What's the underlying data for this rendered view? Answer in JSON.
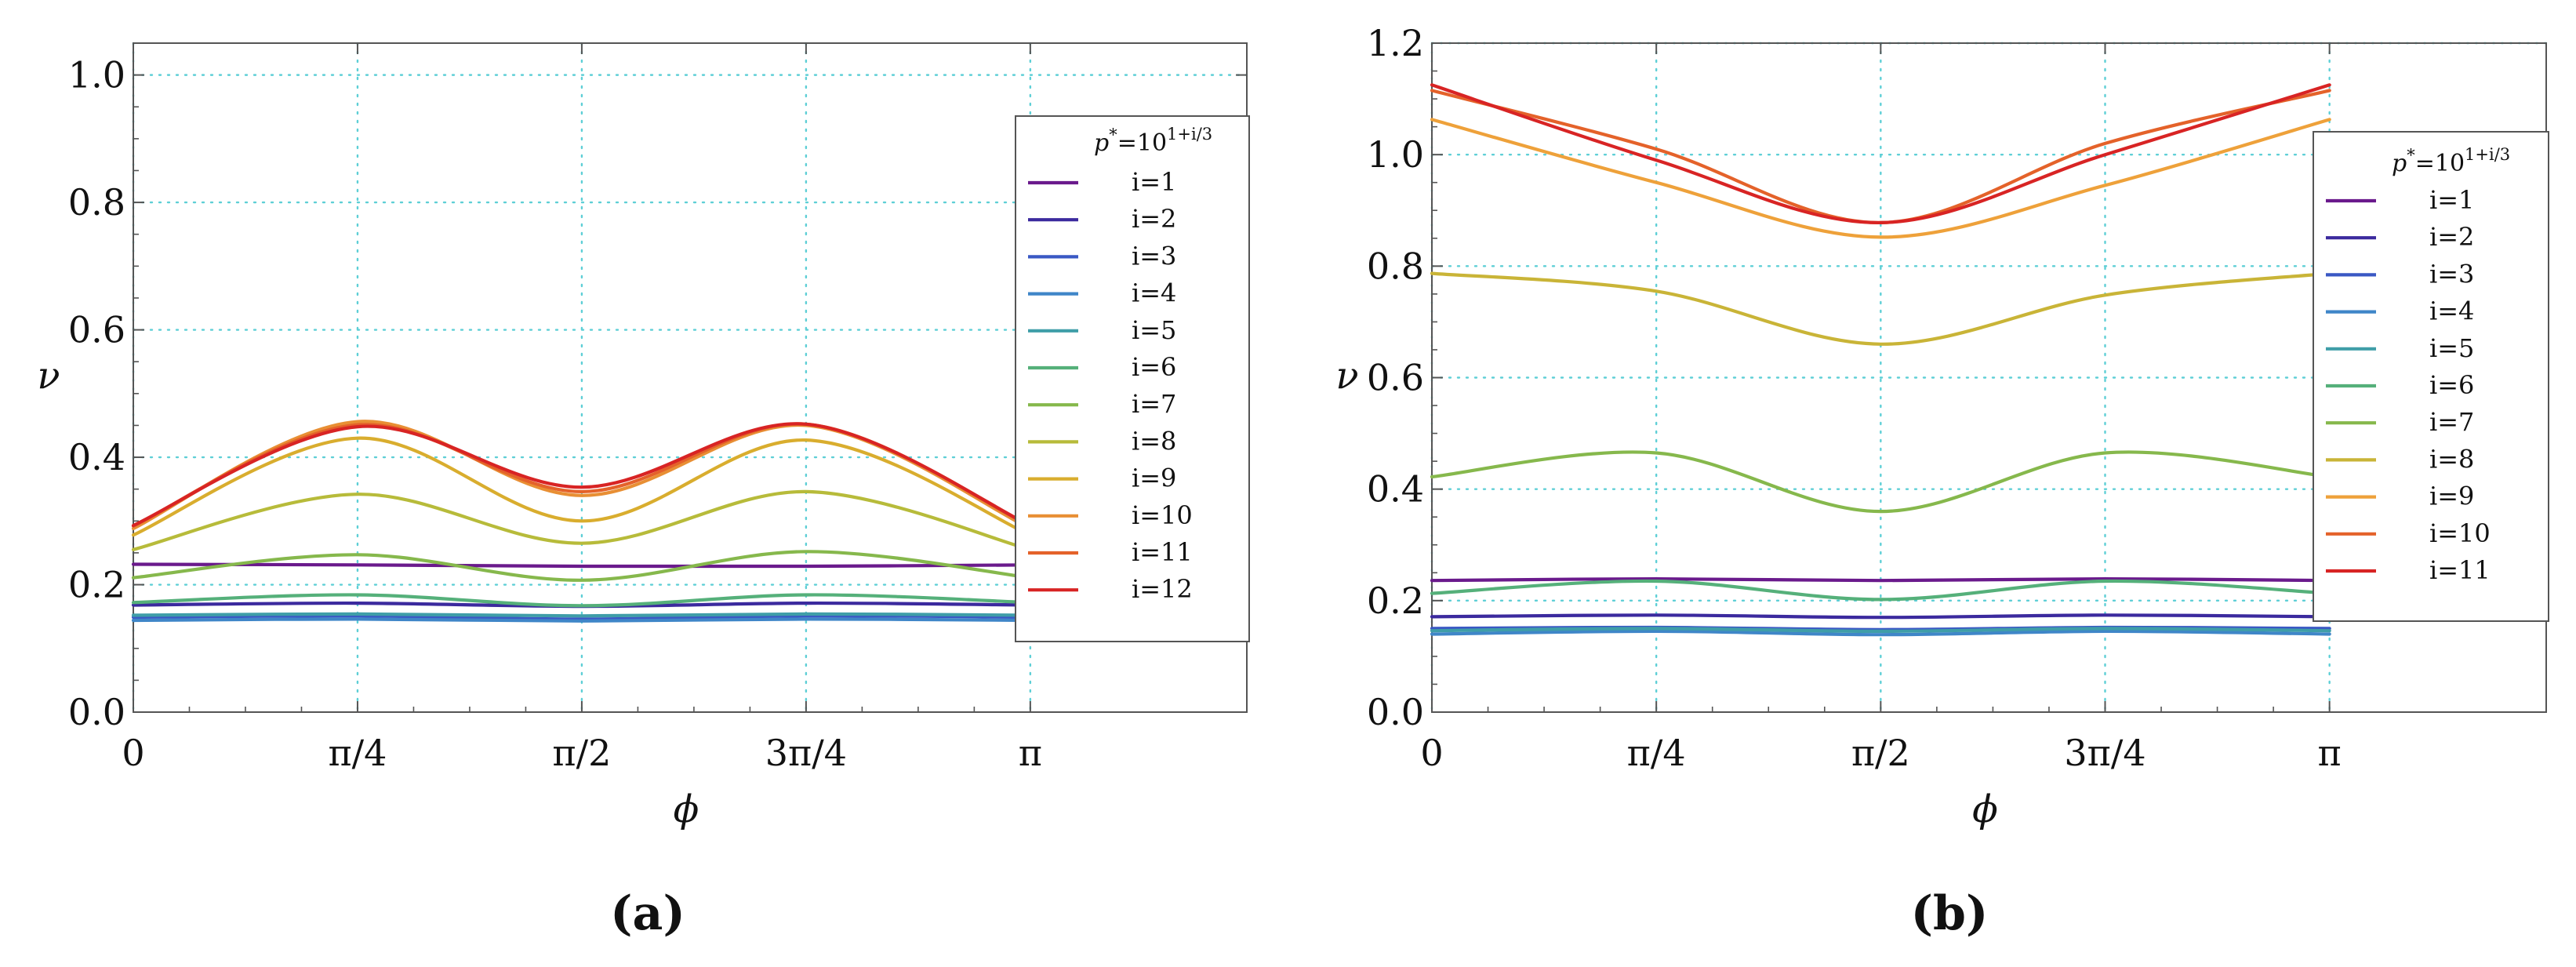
{
  "chart_data": [
    {
      "panel": "(a)",
      "type": "line",
      "xlabel": "ϕ",
      "ylabel": "ν",
      "xlim": [
        0,
        3.9
      ],
      "ylim": [
        0,
        1.05
      ],
      "xticks": [
        {
          "value": 0,
          "label": "0"
        },
        {
          "value": 0.785398,
          "label": "π/4"
        },
        {
          "value": 1.570796,
          "label": "π/2"
        },
        {
          "value": 2.356194,
          "label": "3π/4"
        },
        {
          "value": 3.141593,
          "label": "π"
        }
      ],
      "yticks": [
        {
          "value": 0,
          "label": "0.0"
        },
        {
          "value": 0.2,
          "label": "0.2"
        },
        {
          "value": 0.4,
          "label": "0.4"
        },
        {
          "value": 0.6,
          "label": "0.6"
        },
        {
          "value": 0.8,
          "label": "0.8"
        },
        {
          "value": 1.0,
          "label": "1.0"
        }
      ],
      "grid": true,
      "legend": {
        "title_base": "p",
        "title_sup1": "*",
        "title_mid": "=10",
        "title_sup2": "1+i/3",
        "position": "right"
      },
      "x": [
        0,
        0.7854,
        1.5708,
        2.3562,
        3.1416
      ],
      "series": [
        {
          "name": "i=1",
          "color": "#6a1a8c",
          "values": [
            0.232,
            0.231,
            0.229,
            0.229,
            0.231
          ]
        },
        {
          "name": "i=2",
          "color": "#3b2a9e",
          "values": [
            0.168,
            0.171,
            0.166,
            0.171,
            0.168
          ]
        },
        {
          "name": "i=3",
          "color": "#3a58c4",
          "values": [
            0.149,
            0.151,
            0.146,
            0.151,
            0.149
          ]
        },
        {
          "name": "i=4",
          "color": "#3f86c8",
          "values": [
            0.144,
            0.146,
            0.143,
            0.146,
            0.144
          ]
        },
        {
          "name": "i=5",
          "color": "#3f9ea8",
          "values": [
            0.152,
            0.154,
            0.151,
            0.154,
            0.152
          ]
        },
        {
          "name": "i=6",
          "color": "#55b07a",
          "values": [
            0.172,
            0.184,
            0.167,
            0.184,
            0.172
          ]
        },
        {
          "name": "i=7",
          "color": "#86b84c",
          "values": [
            0.211,
            0.247,
            0.207,
            0.252,
            0.211
          ]
        },
        {
          "name": "i=8",
          "color": "#b7bb3a",
          "values": [
            0.255,
            0.342,
            0.265,
            0.346,
            0.255
          ]
        },
        {
          "name": "i=9",
          "color": "#d9ad2e",
          "values": [
            0.278,
            0.43,
            0.3,
            0.427,
            0.278
          ]
        },
        {
          "name": "i=10",
          "color": "#e88f34",
          "values": [
            0.288,
            0.456,
            0.34,
            0.45,
            0.288
          ]
        },
        {
          "name": "i=11",
          "color": "#e4622a",
          "values": [
            0.292,
            0.451,
            0.346,
            0.452,
            0.292
          ]
        },
        {
          "name": "i=12",
          "color": "#d82424",
          "values": [
            0.293,
            0.448,
            0.353,
            0.452,
            0.293
          ]
        }
      ]
    },
    {
      "panel": "(b)",
      "type": "line",
      "xlabel": "ϕ",
      "ylabel": "ν",
      "xlim": [
        0,
        3.9
      ],
      "ylim": [
        0,
        1.2
      ],
      "xticks": [
        {
          "value": 0,
          "label": "0"
        },
        {
          "value": 0.785398,
          "label": "π/4"
        },
        {
          "value": 1.570796,
          "label": "π/2"
        },
        {
          "value": 2.356194,
          "label": "3π/4"
        },
        {
          "value": 3.141593,
          "label": "π"
        }
      ],
      "yticks": [
        {
          "value": 0,
          "label": "0.0"
        },
        {
          "value": 0.2,
          "label": "0.2"
        },
        {
          "value": 0.4,
          "label": "0.4"
        },
        {
          "value": 0.6,
          "label": "0.6"
        },
        {
          "value": 0.8,
          "label": "0.8"
        },
        {
          "value": 1.0,
          "label": "1.0"
        },
        {
          "value": 1.2,
          "label": "1.2"
        }
      ],
      "grid": true,
      "legend": {
        "title_base": "p",
        "title_sup1": "*",
        "title_mid": "=10",
        "title_sup2": "1+i/3",
        "position": "right"
      },
      "x": [
        0,
        0.7854,
        1.5708,
        2.3562,
        3.1416
      ],
      "series": [
        {
          "name": "i=1",
          "color": "#6a1a8c",
          "values": [
            0.236,
            0.239,
            0.236,
            0.239,
            0.236
          ]
        },
        {
          "name": "i=2",
          "color": "#3b2a9e",
          "values": [
            0.171,
            0.174,
            0.17,
            0.174,
            0.171
          ]
        },
        {
          "name": "i=3",
          "color": "#3a58c4",
          "values": [
            0.15,
            0.152,
            0.148,
            0.152,
            0.15
          ]
        },
        {
          "name": "i=4",
          "color": "#3f86c8",
          "values": [
            0.14,
            0.145,
            0.139,
            0.145,
            0.14
          ]
        },
        {
          "name": "i=5",
          "color": "#3f9ea8",
          "values": [
            0.146,
            0.15,
            0.145,
            0.15,
            0.146
          ]
        },
        {
          "name": "i=6",
          "color": "#55b07a",
          "values": [
            0.213,
            0.235,
            0.202,
            0.235,
            0.213
          ]
        },
        {
          "name": "i=7",
          "color": "#86b84c",
          "values": [
            0.422,
            0.465,
            0.36,
            0.465,
            0.422
          ]
        },
        {
          "name": "i=8",
          "color": "#c9b437",
          "values": [
            0.787,
            0.755,
            0.66,
            0.748,
            0.787
          ]
        },
        {
          "name": "i=9",
          "color": "#eea13a",
          "values": [
            1.063,
            0.95,
            0.852,
            0.945,
            1.063
          ]
        },
        {
          "name": "i=10",
          "color": "#e4622a",
          "values": [
            1.115,
            1.01,
            0.878,
            1.02,
            1.115
          ]
        },
        {
          "name": "i=11",
          "color": "#d82424",
          "values": [
            1.125,
            0.99,
            0.878,
            1.0,
            1.125
          ]
        }
      ]
    }
  ]
}
